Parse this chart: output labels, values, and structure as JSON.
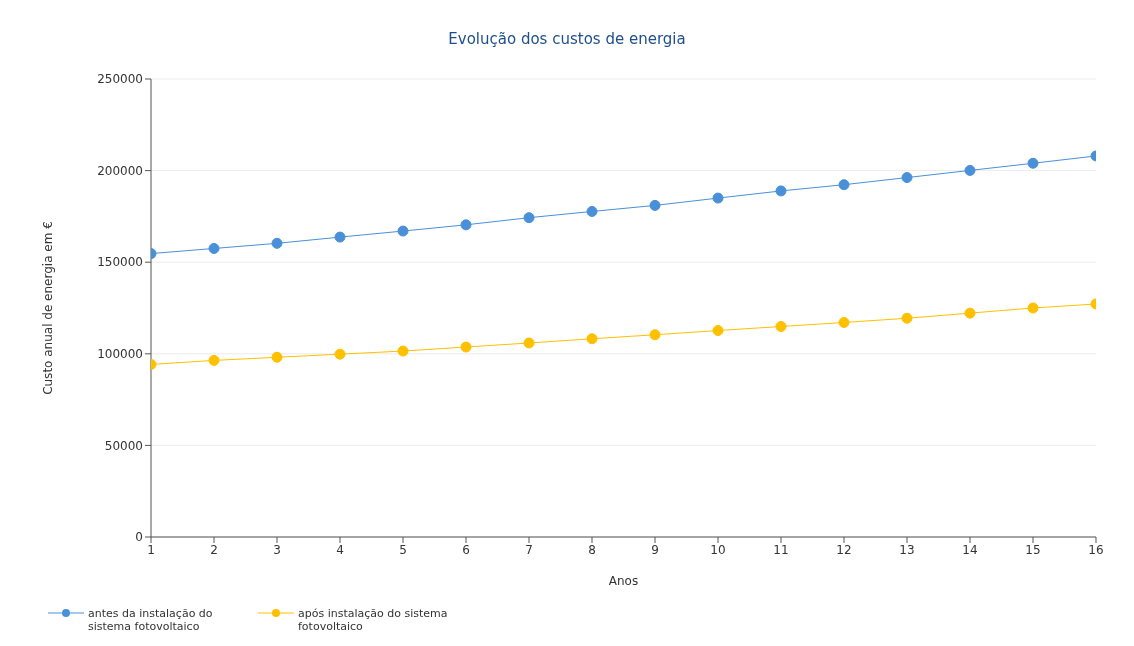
{
  "chart_data": {
    "type": "line",
    "title": "Evolução dos custos de energia",
    "xlabel": "Anos",
    "ylabel": "Custo anual de energia em €",
    "x": [
      1,
      2,
      3,
      4,
      5,
      6,
      7,
      8,
      9,
      10,
      11,
      12,
      13,
      14,
      15,
      16
    ],
    "xlim": [
      1,
      16
    ],
    "xticks": [
      1,
      2,
      3,
      4,
      5,
      6,
      7,
      8,
      9,
      10,
      11,
      12,
      13,
      14,
      15,
      16
    ],
    "ylim": [
      0,
      250000
    ],
    "yticks": [
      0,
      50000,
      100000,
      150000,
      200000,
      250000
    ],
    "grid": "y",
    "legend": "bottom left",
    "marker": "circle",
    "line_style": "solid",
    "series": [
      {
        "name": "antes da instalação do sistema fotovoltaico",
        "color": "#4a90d9",
        "values": [
          154700,
          157500,
          160300,
          163700,
          167000,
          170400,
          174300,
          177700,
          181000,
          185000,
          188900,
          192300,
          196200,
          200100,
          204000,
          208000
        ]
      },
      {
        "name": "após instalação do sistema fotovoltaico",
        "color": "#ffc000",
        "values": [
          94200,
          96400,
          98100,
          99800,
          101500,
          103700,
          105900,
          108200,
          110400,
          112700,
          114900,
          117100,
          119400,
          122200,
          125000,
          127200
        ]
      }
    ]
  }
}
